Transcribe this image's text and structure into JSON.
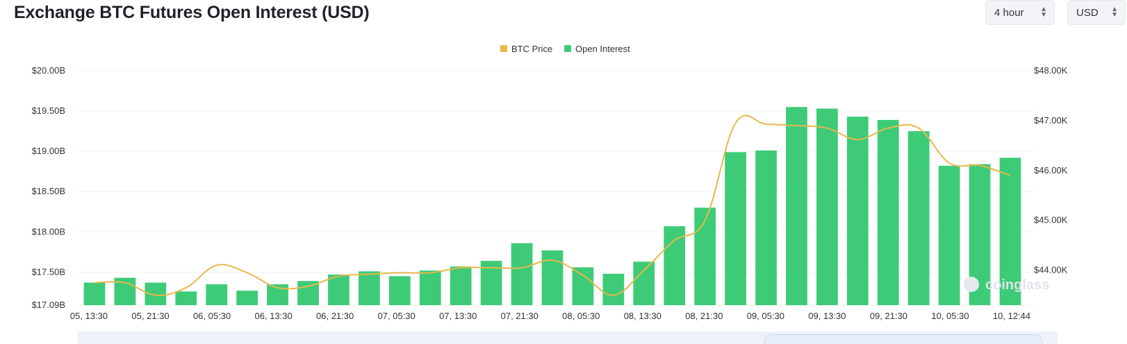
{
  "header": {
    "title": "Exchange BTC Futures Open Interest (USD)",
    "interval_select": {
      "value": "4 hour",
      "icon": "chevron-updown-icon"
    },
    "currency_select": {
      "value": "USD",
      "icon": "chevron-updown-icon"
    }
  },
  "watermark": "coinglass",
  "colors": {
    "open_interest": "#3ecb78",
    "btc_price": "#e8b84a",
    "grid": "#f1f1f1"
  },
  "chart_data": {
    "type": "bar",
    "legend_position": "top-center",
    "grid": true,
    "x_tick_labels": [
      "05, 13:30",
      "05, 21:30",
      "06, 05:30",
      "06, 13:30",
      "06, 21:30",
      "07, 05:30",
      "07, 13:30",
      "07, 21:30",
      "08, 05:30",
      "08, 13:30",
      "08, 21:30",
      "09, 05:30",
      "09, 13:30",
      "09, 21:30",
      "10, 05:30",
      "10, 12:44"
    ],
    "y_left": {
      "ticks": [
        "$20.00B",
        "$19.50B",
        "$19.00B",
        "$18.50B",
        "$18.00B",
        "$17.50B",
        "$17.09B"
      ],
      "range": [
        17.09,
        20.0
      ],
      "unit": "B USD"
    },
    "y_right": {
      "ticks": [
        "$48.00K",
        "$47.00K",
        "$46.00K",
        "$45.00K",
        "$44.00K"
      ],
      "range": [
        43.3,
        48.0
      ],
      "unit": "K USD"
    },
    "series": [
      {
        "name": "Open Interest",
        "type": "bar",
        "axis": "left",
        "values": [
          17.37,
          17.43,
          17.37,
          17.26,
          17.35,
          17.27,
          17.35,
          17.39,
          17.47,
          17.51,
          17.45,
          17.52,
          17.57,
          17.64,
          17.86,
          17.77,
          17.56,
          17.48,
          17.63,
          18.07,
          18.3,
          18.99,
          19.01,
          19.55,
          19.53,
          19.43,
          19.39,
          19.25,
          18.82,
          18.84,
          18.92
        ]
      },
      {
        "name": "BTC Price",
        "type": "line",
        "axis": "right",
        "values": [
          43.75,
          43.75,
          43.5,
          43.65,
          44.1,
          43.95,
          43.65,
          43.68,
          43.88,
          43.92,
          43.95,
          43.95,
          44.05,
          44.05,
          44.05,
          44.2,
          43.9,
          43.5,
          44.0,
          44.6,
          45.0,
          46.95,
          46.93,
          46.9,
          46.85,
          46.62,
          46.85,
          46.85,
          46.15,
          46.1,
          45.9
        ]
      }
    ]
  }
}
